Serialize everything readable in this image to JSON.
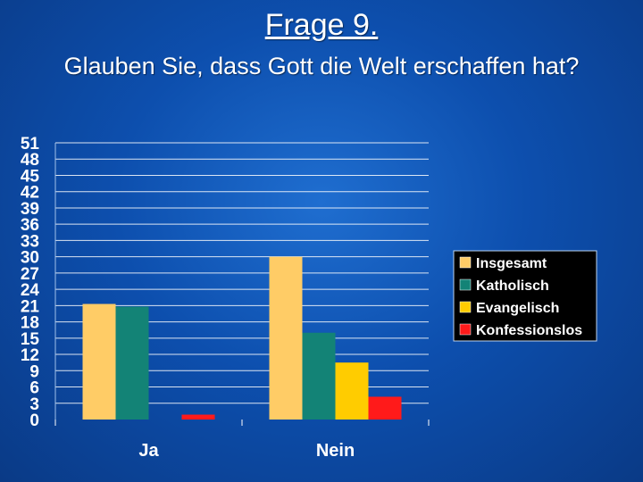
{
  "slide": {
    "title": "Frage 9.",
    "subtitle": "Glauben Sie, dass Gott die Welt erschaffen hat?"
  },
  "chart_data": {
    "type": "bar",
    "categories": [
      "Ja",
      "Nein"
    ],
    "series": [
      {
        "name": "Insgesamt",
        "values": [
          21.3,
          30
        ],
        "color": "#FFCC66"
      },
      {
        "name": "Katholisch",
        "values": [
          20.8,
          16
        ],
        "color": "#138376"
      },
      {
        "name": "Evangelisch",
        "values": [
          0,
          10.5
        ],
        "color": "#FFCC00"
      },
      {
        "name": "Konfessionslos",
        "values": [
          0.9,
          4.2
        ],
        "color": "#FF1A1A"
      }
    ],
    "yticks": [
      "0",
      "3",
      "6",
      "9",
      "12",
      "15",
      "18",
      "21",
      "24",
      "27",
      "30",
      "33",
      "36",
      "39",
      "42",
      "45",
      "48",
      "51"
    ],
    "ylim": [
      0,
      51
    ],
    "grid": true,
    "legend_position": "right"
  }
}
